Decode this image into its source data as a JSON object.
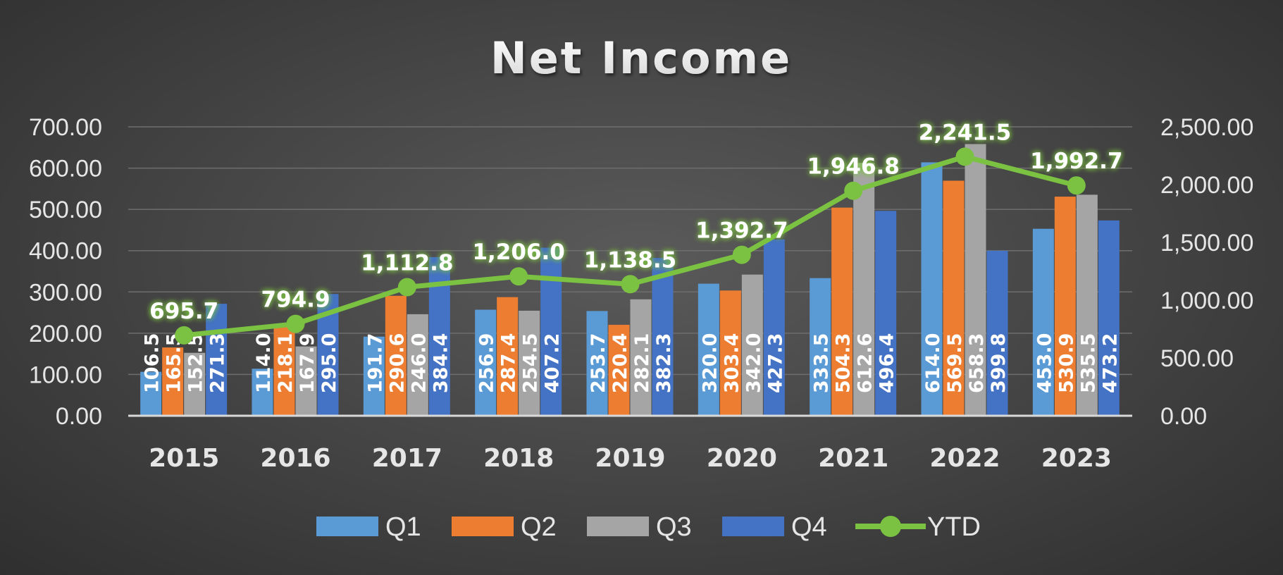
{
  "chart_data": {
    "type": "bar",
    "title": "Net Income",
    "categories": [
      "2015",
      "2016",
      "2017",
      "2018",
      "2019",
      "2020",
      "2021",
      "2022",
      "2023"
    ],
    "series": [
      {
        "name": "Q1",
        "color": "#5b9bd5",
        "values": [
          106.5,
          114.0,
          191.7,
          256.9,
          253.7,
          320.0,
          333.5,
          614.0,
          453.0
        ]
      },
      {
        "name": "Q2",
        "color": "#ed7d31",
        "values": [
          165.5,
          218.1,
          290.6,
          287.4,
          220.4,
          303.4,
          504.3,
          569.5,
          530.9
        ]
      },
      {
        "name": "Q3",
        "color": "#a5a5a5",
        "values": [
          152.5,
          167.9,
          246.0,
          254.5,
          282.1,
          342.0,
          612.6,
          658.3,
          535.5
        ]
      },
      {
        "name": "Q4",
        "color": "#4472c4",
        "values": [
          271.3,
          295.0,
          384.4,
          407.2,
          382.3,
          427.3,
          496.4,
          399.8,
          473.2
        ]
      }
    ],
    "line_series": {
      "name": "YTD",
      "color": "#7cc242",
      "axis": "secondary",
      "values": [
        695.7,
        794.9,
        1112.8,
        1206.0,
        1138.5,
        1392.7,
        1946.8,
        2241.5,
        1992.7
      ]
    },
    "y_left": {
      "min": 0,
      "max": 700,
      "ticks": [
        "0.00",
        "100.00",
        "200.00",
        "300.00",
        "400.00",
        "500.00",
        "600.00",
        "700.00"
      ]
    },
    "y_right": {
      "min": 0,
      "max": 2500,
      "ticks": [
        "0.00",
        "500.00",
        "1,000.00",
        "1,500.00",
        "2,000.00",
        "2,500.00"
      ]
    },
    "grid": true,
    "legend_position": "bottom"
  }
}
